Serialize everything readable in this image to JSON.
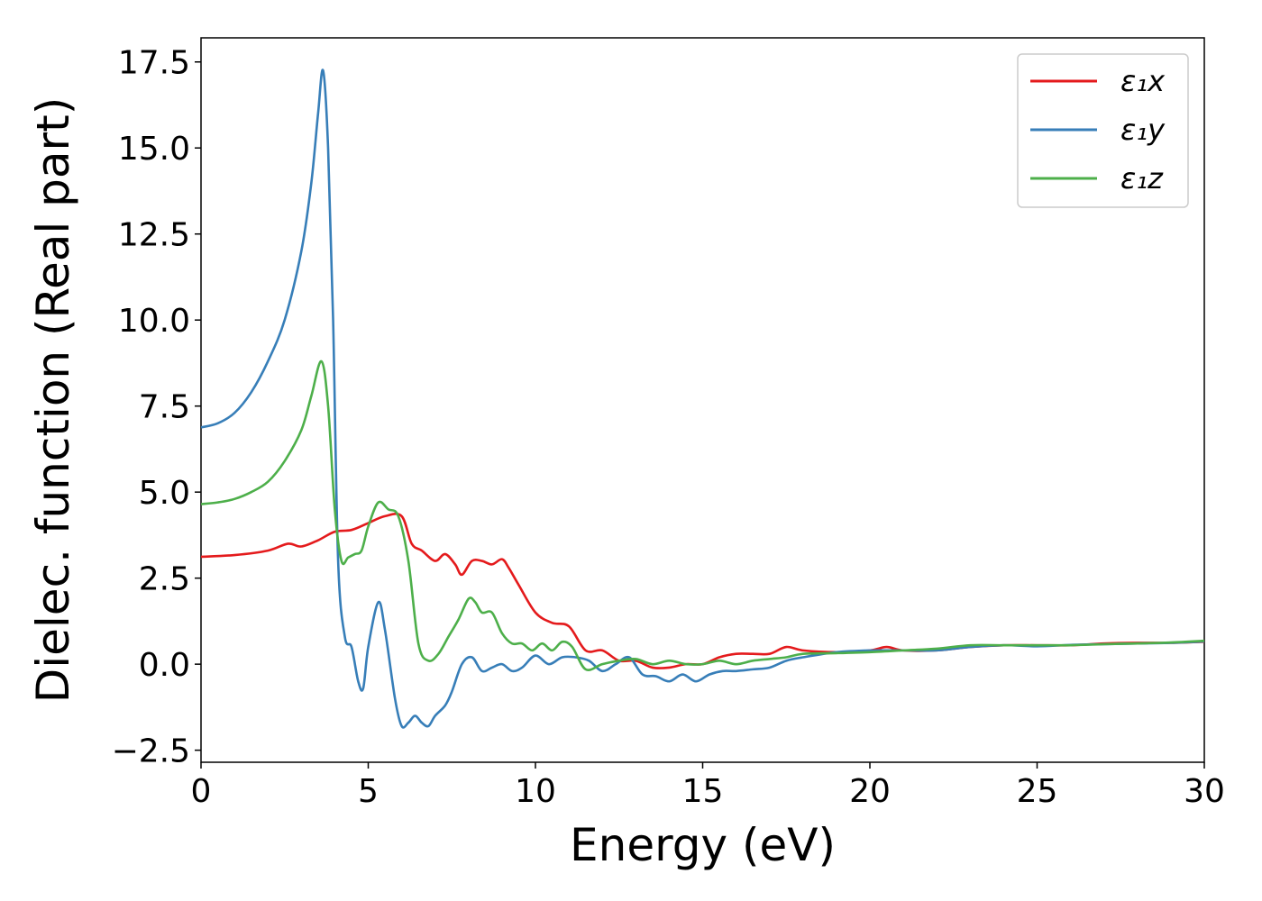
{
  "chart_data": {
    "type": "line",
    "title": "",
    "xlabel": "Energy (eV)",
    "ylabel": "Dielec. function (Real part)",
    "xlim": [
      0,
      30
    ],
    "ylim": [
      -2.85,
      18.2
    ],
    "xticks": [
      0,
      5,
      10,
      15,
      20,
      25,
      30
    ],
    "xtick_labels": [
      "0",
      "5",
      "10",
      "15",
      "20",
      "25",
      "30"
    ],
    "yticks": [
      -2.5,
      0.0,
      2.5,
      5.0,
      7.5,
      10.0,
      12.5,
      15.0,
      17.5
    ],
    "ytick_labels": [
      "−2.5",
      "0.0",
      "2.5",
      "5.0",
      "7.5",
      "10.0",
      "12.5",
      "15.0",
      "17.5"
    ],
    "grid": false,
    "legend_position": "top-right",
    "series": [
      {
        "name": "ε₁x",
        "color": "#e41a1c",
        "x": [
          0,
          1,
          2,
          2.6,
          3,
          3.5,
          4,
          4.5,
          5,
          5.5,
          6,
          6.3,
          6.6,
          7,
          7.3,
          7.6,
          7.8,
          8.1,
          8.4,
          8.7,
          9,
          9.2,
          9.5,
          10,
          10.5,
          11,
          11.5,
          12,
          12.5,
          13,
          13.5,
          14,
          14.5,
          15,
          15.5,
          16,
          16.5,
          17,
          17.5,
          18,
          19,
          20,
          20.5,
          21,
          22,
          23,
          24,
          25,
          26,
          27,
          28,
          29,
          30
        ],
        "y": [
          3.12,
          3.17,
          3.3,
          3.5,
          3.42,
          3.6,
          3.85,
          3.9,
          4.1,
          4.3,
          4.3,
          3.5,
          3.3,
          3.0,
          3.2,
          2.9,
          2.6,
          3.0,
          3.0,
          2.9,
          3.05,
          2.8,
          2.3,
          1.5,
          1.2,
          1.1,
          0.4,
          0.4,
          0.1,
          0.1,
          -0.1,
          -0.1,
          0.0,
          0.0,
          0.2,
          0.3,
          0.3,
          0.3,
          0.5,
          0.4,
          0.35,
          0.4,
          0.5,
          0.4,
          0.4,
          0.5,
          0.55,
          0.55,
          0.55,
          0.6,
          0.62,
          0.62,
          0.65
        ]
      },
      {
        "name": "ε₁y",
        "color": "#377eb8",
        "x": [
          0,
          0.5,
          1,
          1.5,
          2,
          2.5,
          3,
          3.3,
          3.5,
          3.65,
          3.8,
          3.95,
          4.1,
          4.3,
          4.5,
          4.7,
          4.85,
          5,
          5.3,
          5.5,
          5.8,
          6.0,
          6.2,
          6.4,
          6.6,
          6.8,
          7,
          7.3,
          7.5,
          7.8,
          8.1,
          8.4,
          8.7,
          9.0,
          9.3,
          9.6,
          10,
          10.4,
          10.8,
          11.2,
          11.6,
          12,
          12.4,
          12.8,
          13.2,
          13.6,
          14,
          14.4,
          14.8,
          15.2,
          15.6,
          16,
          16.5,
          17,
          17.5,
          18,
          19,
          20,
          21,
          22,
          23,
          24,
          25,
          26,
          27,
          28,
          29,
          30
        ],
        "y": [
          6.88,
          7.0,
          7.3,
          7.9,
          8.8,
          10.0,
          12.0,
          14.0,
          16.0,
          17.25,
          15.0,
          10.0,
          3.0,
          0.8,
          0.5,
          -0.5,
          -0.7,
          0.5,
          1.8,
          1.0,
          -1.0,
          -1.8,
          -1.7,
          -1.5,
          -1.7,
          -1.8,
          -1.5,
          -1.2,
          -0.8,
          0.0,
          0.2,
          -0.2,
          -0.1,
          0.0,
          -0.2,
          -0.1,
          0.25,
          0.0,
          0.2,
          0.2,
          0.1,
          -0.2,
          0.0,
          0.2,
          -0.3,
          -0.35,
          -0.5,
          -0.3,
          -0.5,
          -0.3,
          -0.2,
          -0.2,
          -0.15,
          -0.1,
          0.1,
          0.2,
          0.35,
          0.4,
          0.4,
          0.4,
          0.5,
          0.55,
          0.52,
          0.56,
          0.58,
          0.6,
          0.62,
          0.66
        ]
      },
      {
        "name": "ε₁z",
        "color": "#4daf4a",
        "x": [
          0,
          0.5,
          1,
          1.5,
          2,
          2.5,
          3,
          3.3,
          3.6,
          3.8,
          4.0,
          4.2,
          4.4,
          4.6,
          4.8,
          5.0,
          5.3,
          5.6,
          5.9,
          6.2,
          6.5,
          6.8,
          7.1,
          7.4,
          7.7,
          8.0,
          8.2,
          8.4,
          8.7,
          9.0,
          9.3,
          9.6,
          9.9,
          10.2,
          10.5,
          10.8,
          11.1,
          11.5,
          12,
          12.5,
          13,
          13.5,
          14,
          14.5,
          15,
          15.5,
          16,
          16.5,
          17,
          17.5,
          18,
          19,
          20,
          21,
          22,
          23,
          24,
          25,
          26,
          27,
          28,
          29,
          30
        ],
        "y": [
          4.65,
          4.7,
          4.8,
          5.0,
          5.3,
          5.9,
          6.8,
          7.8,
          8.8,
          7.5,
          4.5,
          3.0,
          3.1,
          3.2,
          3.3,
          4.0,
          4.7,
          4.5,
          4.3,
          3.0,
          0.6,
          0.1,
          0.3,
          0.8,
          1.3,
          1.9,
          1.8,
          1.5,
          1.5,
          0.9,
          0.6,
          0.6,
          0.4,
          0.6,
          0.4,
          0.65,
          0.5,
          -0.15,
          0.0,
          0.1,
          0.15,
          0.0,
          0.1,
          0.0,
          0.0,
          0.1,
          0.0,
          0.1,
          0.15,
          0.2,
          0.3,
          0.32,
          0.35,
          0.4,
          0.45,
          0.55,
          0.55,
          0.55,
          0.55,
          0.58,
          0.6,
          0.63,
          0.68
        ]
      }
    ]
  }
}
